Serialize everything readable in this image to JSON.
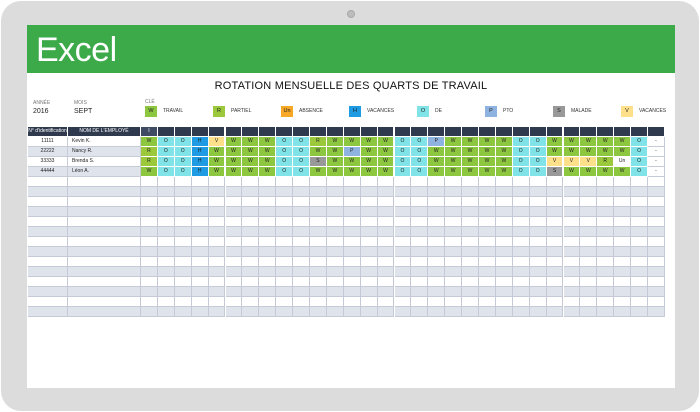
{
  "app": {
    "name": "Excel"
  },
  "title": "ROTATION MENSUELLE DES QUARTS DE TRAVAIL",
  "meta": {
    "year_label": "ANNÉE",
    "year": "2016",
    "month_label": "MOIS",
    "month": "SEPT",
    "key_label": "CLÉ"
  },
  "key": [
    {
      "code": "W",
      "label": "TRAVAIL",
      "color": "#8dc63f"
    },
    {
      "code": "R",
      "label": "PARTIEL",
      "color": "#9bc93b"
    },
    {
      "code": "Un",
      "label": "ABSENCE",
      "color": "#f7a824"
    },
    {
      "code": "H",
      "label": "VACANCES",
      "color": "#1e9be2"
    },
    {
      "code": "O",
      "label": "DE",
      "color": "#7fe3e7"
    },
    {
      "code": "P",
      "label": "PTO",
      "color": "#8fb3e0"
    },
    {
      "code": "S",
      "label": "MALADE",
      "color": "#999999"
    },
    {
      "code": "V",
      "label": "VACANCES",
      "color": "#ffe08a"
    }
  ],
  "table": {
    "headers": {
      "id": "N° d'identification",
      "name": "NOM DE L'EMPLOYÉ",
      "first_day": "I"
    },
    "rows": [
      {
        "id": "11111",
        "name": "Kevin K.",
        "shifts": [
          "W",
          "O",
          "O",
          "H",
          "V",
          "W",
          "W",
          "W",
          "O",
          "O",
          "R",
          "W",
          "W",
          "W",
          "W",
          "O",
          "O",
          "P",
          "W",
          "W",
          "W",
          "W",
          "O",
          "O",
          "W",
          "W",
          "W",
          "W",
          "W",
          "O",
          "-"
        ]
      },
      {
        "id": "22222",
        "name": "Nancy R.",
        "shifts": [
          "R",
          "O",
          "O",
          "H",
          "W",
          "W",
          "W",
          "W",
          "O",
          "O",
          "W",
          "W",
          "P",
          "W",
          "W",
          "O",
          "O",
          "W",
          "W",
          "W",
          "W",
          "W",
          "O",
          "O",
          "W",
          "W",
          "W",
          "W",
          "W",
          "O",
          "-"
        ]
      },
      {
        "id": "33333",
        "name": "Brenda S.",
        "shifts": [
          "R",
          "O",
          "O",
          "H",
          "W",
          "W",
          "W",
          "W",
          "O",
          "O",
          "S",
          "W",
          "W",
          "W",
          "W",
          "O",
          "O",
          "W",
          "W",
          "W",
          "W",
          "W",
          "O",
          "O",
          "V",
          "V",
          "V",
          "R",
          "Un",
          "O",
          "-"
        ]
      },
      {
        "id": "44444",
        "name": "Léon A.",
        "shifts": [
          "W",
          "O",
          "O",
          "H",
          "W",
          "W",
          "W",
          "W",
          "O",
          "O",
          "W",
          "W",
          "W",
          "W",
          "W",
          "O",
          "O",
          "W",
          "W",
          "W",
          "W",
          "W",
          "O",
          "O",
          "S",
          "W",
          "W",
          "W",
          "W",
          "O",
          "-"
        ]
      }
    ],
    "empty_rows": 14
  }
}
